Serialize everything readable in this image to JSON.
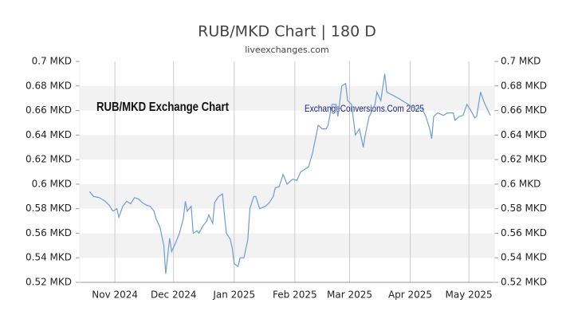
{
  "chart_data": {
    "type": "line",
    "title": "RUB/MKD Chart | 180 D",
    "subtitle": "liveexchanges.com",
    "annotations": [
      "RUB/MKD Exchange Chart",
      "ExchangeConversions.Com 2025"
    ],
    "x": [
      5,
      7,
      10,
      13,
      15,
      17,
      19,
      20,
      22,
      24,
      26,
      28,
      30,
      32,
      34,
      36,
      38,
      39,
      41,
      43,
      44,
      46,
      47,
      49,
      51,
      53,
      54,
      55,
      57,
      58,
      60,
      61,
      63,
      65,
      66,
      68,
      69,
      71,
      73,
      74,
      75,
      77,
      78,
      79,
      81,
      82,
      84,
      86,
      87,
      89,
      90,
      92,
      95,
      97,
      99,
      100,
      102,
      104,
      106,
      108,
      109,
      111,
      113,
      115,
      117,
      119,
      122,
      124,
      126,
      127,
      129,
      131,
      132,
      134,
      136,
      137,
      139,
      141,
      143,
      145,
      146,
      148,
      149,
      151,
      152,
      154,
      156,
      157,
      163,
      168,
      172,
      175,
      177,
      179,
      180,
      181,
      183,
      186,
      188,
      191,
      192,
      194,
      196,
      198,
      200,
      202,
      203,
      205,
      207,
      210
    ],
    "series": [
      {
        "name": "RUB/MKD",
        "color": "#6f9bd9",
        "values": [
          0.594,
          0.59,
          0.589,
          0.586,
          0.583,
          0.578,
          0.58,
          0.573,
          0.582,
          0.586,
          0.584,
          0.589,
          0.588,
          0.585,
          0.583,
          0.582,
          0.578,
          0.572,
          0.565,
          0.55,
          0.527,
          0.556,
          0.545,
          0.552,
          0.56,
          0.572,
          0.586,
          0.578,
          0.582,
          0.56,
          0.562,
          0.56,
          0.566,
          0.57,
          0.575,
          0.568,
          0.585,
          0.59,
          0.592,
          0.575,
          0.56,
          0.555,
          0.548,
          0.535,
          0.533,
          0.54,
          0.54,
          0.555,
          0.58,
          0.59,
          0.59,
          0.58,
          0.582,
          0.585,
          0.59,
          0.597,
          0.598,
          0.608,
          0.6,
          0.603,
          0.604,
          0.603,
          0.61,
          0.612,
          0.614,
          0.625,
          0.648,
          0.645,
          0.645,
          0.648,
          0.665,
          0.665,
          0.655,
          0.68,
          0.682,
          0.668,
          0.665,
          0.64,
          0.645,
          0.63,
          0.64,
          0.655,
          0.658,
          0.665,
          0.675,
          0.668,
          0.69,
          0.675,
          0.67,
          0.665,
          0.661,
          0.662,
          0.655,
          0.645,
          0.637,
          0.655,
          0.658,
          0.656,
          0.658,
          0.658,
          0.652,
          0.655,
          0.656,
          0.665,
          0.66,
          0.654,
          0.655,
          0.675,
          0.666,
          0.656
        ]
      }
    ],
    "xlim": [
      0,
      212
    ],
    "xticks": [
      {
        "value": 18,
        "label": "Nov 2024"
      },
      {
        "value": 48,
        "label": "Dec 2024"
      },
      {
        "value": 79,
        "label": "Jan 2025"
      },
      {
        "value": 110,
        "label": "Feb 2025"
      },
      {
        "value": 138,
        "label": "Mar 2025"
      },
      {
        "value": 169,
        "label": "Apr 2025"
      },
      {
        "value": 199,
        "label": "May 2025"
      }
    ],
    "ylim": [
      0.52,
      0.7
    ],
    "yticks": [
      {
        "value": 0.52,
        "label": "0.52 MKD"
      },
      {
        "value": 0.54,
        "label": "0.54 MKD"
      },
      {
        "value": 0.56,
        "label": "0.56 MKD"
      },
      {
        "value": 0.58,
        "label": "0.58 MKD"
      },
      {
        "value": 0.6,
        "label": "0.6 MKD"
      },
      {
        "value": 0.62,
        "label": "0.62 MKD"
      },
      {
        "value": 0.64,
        "label": "0.64 MKD"
      },
      {
        "value": 0.66,
        "label": "0.66 MKD"
      },
      {
        "value": 0.68,
        "label": "0.68 MKD"
      },
      {
        "value": 0.7,
        "label": "0.7 MKD"
      }
    ],
    "y2lim": [
      0.52,
      0.7
    ],
    "y2ticks": [
      {
        "value": 0.52,
        "label": "0.52 MKD"
      },
      {
        "value": 0.54,
        "label": "0.54 MKD"
      },
      {
        "value": 0.56,
        "label": "0.56 MKD"
      },
      {
        "value": 0.58,
        "label": "0.58 MKD"
      },
      {
        "value": 0.6,
        "label": "0.6 MKD"
      },
      {
        "value": 0.62,
        "label": "0.62 MKD"
      },
      {
        "value": 0.64,
        "label": "0.64 MKD"
      },
      {
        "value": 0.66,
        "label": "0.66 MKD"
      },
      {
        "value": 0.68,
        "label": "0.68 MKD"
      },
      {
        "value": 0.7,
        "label": "0.7 MKD"
      }
    ],
    "grid": true,
    "banded": true
  }
}
